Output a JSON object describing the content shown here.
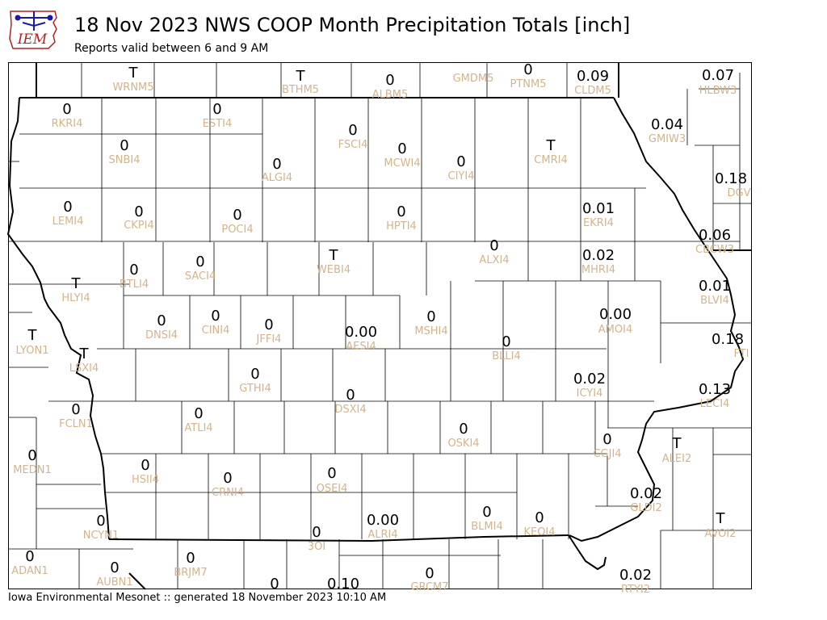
{
  "header": {
    "title": "18 Nov 2023 NWS COOP Month Precipitation Totals [inch]",
    "subtitle": "Reports valid between 6 and 9 AM",
    "logo_text": "IEM"
  },
  "footer": {
    "text": "Iowa Environmental Mesonet :: generated 18 November 2023 10:10 AM"
  },
  "colors": {
    "value": "#000000",
    "station": "#d2b48c",
    "logo_red": "#b22222",
    "logo_blue": "#1a1aa6"
  },
  "stations": [
    {
      "id": "WRNM5",
      "value": "T"
    },
    {
      "id": "BTHM5",
      "value": "T"
    },
    {
      "id": "ALBM5",
      "value": "0"
    },
    {
      "id": "GMDM5",
      "value": ""
    },
    {
      "id": "PTNM5",
      "value": "0"
    },
    {
      "id": "CLDM5",
      "value": "0.09"
    },
    {
      "id": "HLBW3",
      "value": "0.07"
    },
    {
      "id": "RKRI4",
      "value": "0"
    },
    {
      "id": "ESTI4",
      "value": "0"
    },
    {
      "id": "FSCI4",
      "value": "0"
    },
    {
      "id": "GMIW3",
      "value": "0.04"
    },
    {
      "id": "SNBI4",
      "value": "0"
    },
    {
      "id": "MCWI4",
      "value": "0"
    },
    {
      "id": "CMRI4",
      "value": "T"
    },
    {
      "id": "ALGI4",
      "value": "0"
    },
    {
      "id": "CIYI4",
      "value": "0"
    },
    {
      "id": "DGV",
      "value": "0.18"
    },
    {
      "id": "LEMI4",
      "value": "0"
    },
    {
      "id": "CKPI4",
      "value": "0"
    },
    {
      "id": "POCI4",
      "value": "0"
    },
    {
      "id": "HPTI4",
      "value": "0"
    },
    {
      "id": "EKRI4",
      "value": "0.01"
    },
    {
      "id": "CBCW3",
      "value": "0.06"
    },
    {
      "id": "ALXI4",
      "value": "0"
    },
    {
      "id": "MHRI4",
      "value": "0.02"
    },
    {
      "id": "WEBI4",
      "value": "T"
    },
    {
      "id": "SACI4",
      "value": "0"
    },
    {
      "id": "BTLI4",
      "value": "0"
    },
    {
      "id": "HLYI4",
      "value": "T"
    },
    {
      "id": "BLVI4",
      "value": "0.01"
    },
    {
      "id": "AMOI4",
      "value": "0.00"
    },
    {
      "id": "DNSI4",
      "value": "0"
    },
    {
      "id": "CINI4",
      "value": "0"
    },
    {
      "id": "JFFI4",
      "value": "0"
    },
    {
      "id": "AESI4",
      "value": "0.00"
    },
    {
      "id": "MSHI4",
      "value": "0"
    },
    {
      "id": "LYON1",
      "value": "T"
    },
    {
      "id": "FTI",
      "value": "0.18"
    },
    {
      "id": "BLLI4",
      "value": "0"
    },
    {
      "id": "LSXI4",
      "value": "T"
    },
    {
      "id": "ICYI4",
      "value": "0.02"
    },
    {
      "id": "GTHI4",
      "value": "0"
    },
    {
      "id": "LECI4",
      "value": "0.13"
    },
    {
      "id": "DSXI4",
      "value": "0"
    },
    {
      "id": "FCLN1",
      "value": "0"
    },
    {
      "id": "ATLI4",
      "value": "0"
    },
    {
      "id": "OSKI4",
      "value": "0"
    },
    {
      "id": "CGJI4",
      "value": "0"
    },
    {
      "id": "ALEI2",
      "value": "T"
    },
    {
      "id": "MEDN1",
      "value": "0"
    },
    {
      "id": "HSII4",
      "value": "0"
    },
    {
      "id": "CRNI4",
      "value": "0"
    },
    {
      "id": "OSEI4",
      "value": "0"
    },
    {
      "id": "GLDI2",
      "value": "0.02"
    },
    {
      "id": "BLMI4",
      "value": "0"
    },
    {
      "id": "KEOI4",
      "value": "0"
    },
    {
      "id": "ALRI4",
      "value": "0.00"
    },
    {
      "id": "NCYN1",
      "value": "0"
    },
    {
      "id": "AVOI2",
      "value": "T"
    },
    {
      "id": "3OI",
      "value": "0"
    },
    {
      "id": "ADAN1",
      "value": "0"
    },
    {
      "id": "AUBN1",
      "value": "0"
    },
    {
      "id": "BRJM7",
      "value": "0"
    },
    {
      "id": "GRCM7",
      "value": "0"
    },
    {
      "id": "RTYI2",
      "value": "0.02"
    },
    {
      "id": "",
      "value": "0"
    },
    {
      "id": "",
      "value": "0.10"
    }
  ]
}
